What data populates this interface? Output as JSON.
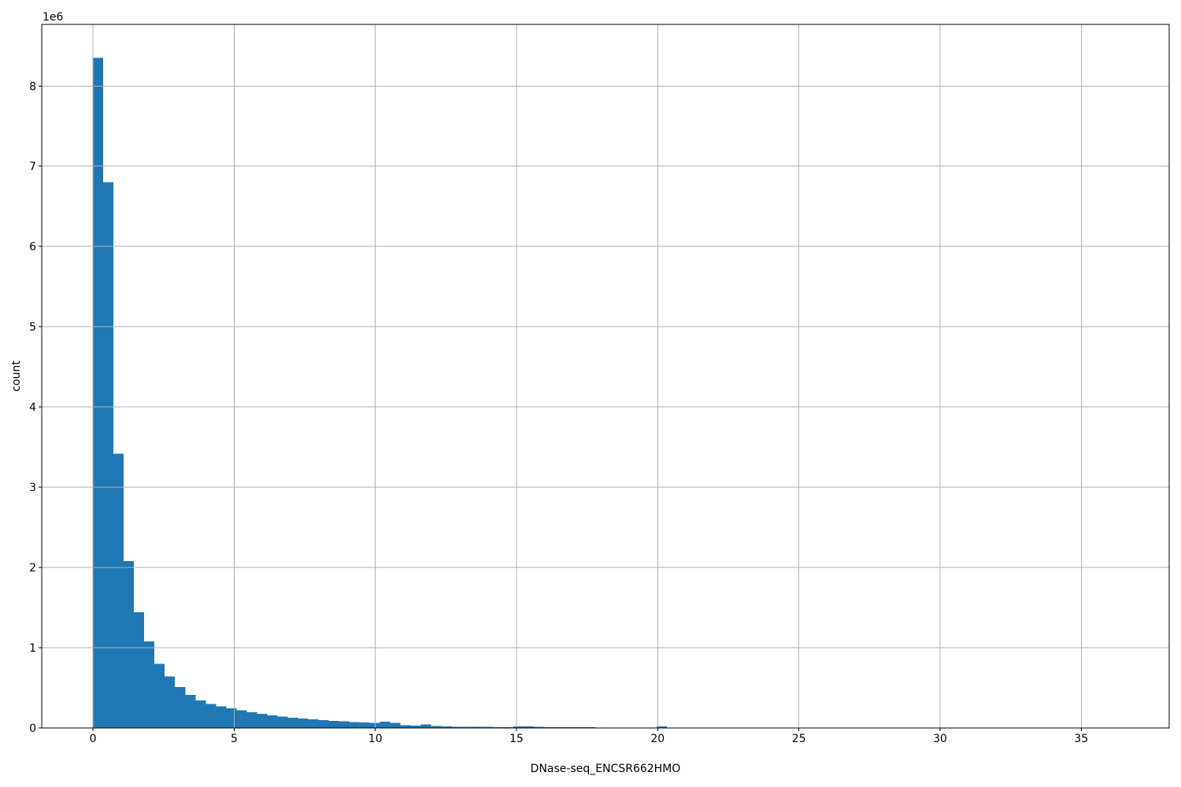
{
  "chart_data": {
    "type": "bar",
    "subtype": "histogram",
    "title": "",
    "xlabel": "DNase-seq_ENCSR662HMO",
    "ylabel": "count",
    "y_offset_label": "1e6",
    "bar_color": "#1f77b4",
    "grid_color": "#b0b0b0",
    "axis_color": "#000000",
    "grid": true,
    "grid_above_bars": true,
    "legend_position": "none",
    "bin_start": 0,
    "bin_width": 0.363,
    "counts": [
      8350000,
      6800000,
      3420000,
      2080000,
      1440000,
      1080000,
      800000,
      640000,
      510000,
      410000,
      345000,
      300000,
      270000,
      245000,
      220000,
      198000,
      176000,
      158000,
      142000,
      128000,
      116000,
      106000,
      97000,
      89000,
      82000,
      76000,
      70000,
      62000,
      80000,
      66000,
      35000,
      30000,
      45000,
      25000,
      19000,
      17000,
      15000,
      14000,
      13000,
      12000,
      11000,
      21000,
      18000,
      13000,
      10000,
      9000,
      8500,
      8000,
      7500,
      7000,
      6500,
      0,
      0,
      0,
      0,
      18000,
      0,
      0,
      0,
      0,
      0,
      0,
      0,
      0,
      0,
      0,
      0,
      0,
      0,
      0,
      0,
      0,
      0,
      0,
      0,
      0,
      0,
      0,
      0,
      0,
      0,
      0,
      0,
      0,
      0,
      0,
      0,
      0,
      0,
      0,
      0,
      0,
      0,
      0,
      0,
      0,
      0,
      0,
      0,
      0
    ],
    "x_ticks": [
      0,
      5,
      10,
      15,
      20,
      25,
      30,
      35
    ],
    "x_tick_labels": [
      "0",
      "5",
      "10",
      "15",
      "20",
      "25",
      "30",
      "35"
    ],
    "y_ticks": [
      0,
      1000000,
      2000000,
      3000000,
      4000000,
      5000000,
      6000000,
      7000000,
      8000000
    ],
    "y_tick_labels": [
      "0",
      "1",
      "2",
      "3",
      "4",
      "5",
      "6",
      "7",
      "8"
    ],
    "xlim": [
      -1.815,
      38.115
    ],
    "ylim": [
      0,
      8767500
    ]
  }
}
